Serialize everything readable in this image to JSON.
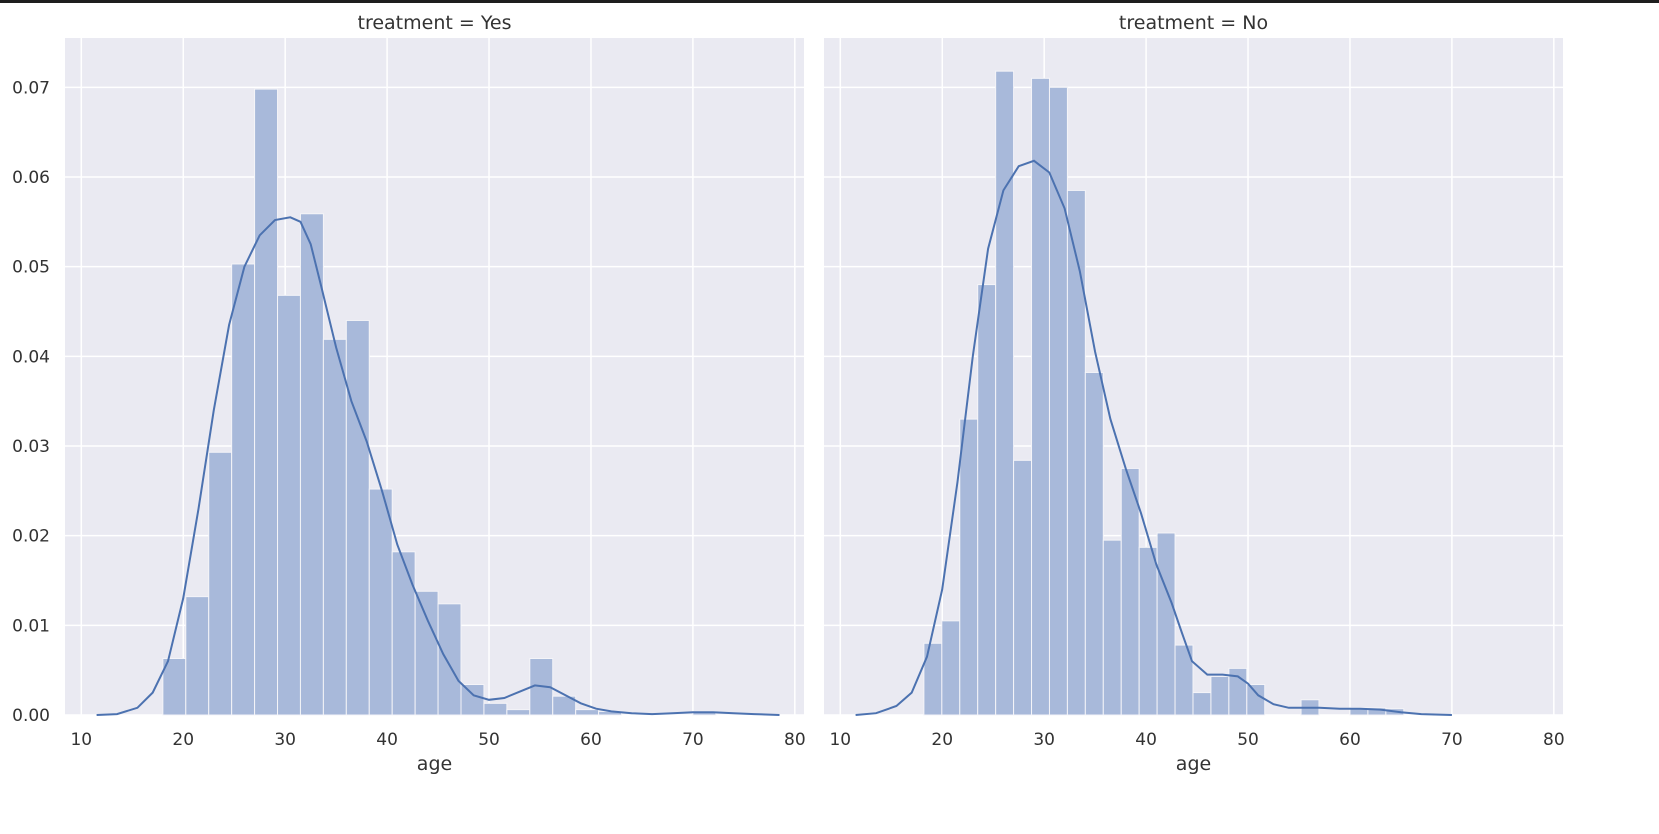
{
  "chart_data": [
    {
      "type": "bar",
      "title": "treatment = Yes",
      "xlabel": "age",
      "ylabel": "",
      "xlim": [
        8.4,
        80.9
      ],
      "ylim": [
        0,
        0.0755
      ],
      "xticks": [
        "10",
        "20",
        "30",
        "40",
        "50",
        "60",
        "70",
        "80"
      ],
      "yticks": [
        "0.00",
        "0.01",
        "0.02",
        "0.03",
        "0.04",
        "0.05",
        "0.06",
        "0.07"
      ],
      "bins": [
        {
          "x0": 18.0,
          "x1": 20.25,
          "y": 0.0063
        },
        {
          "x0": 20.25,
          "x1": 22.5,
          "y": 0.0132
        },
        {
          "x0": 22.5,
          "x1": 24.75,
          "y": 0.0293
        },
        {
          "x0": 24.75,
          "x1": 27.0,
          "y": 0.0503
        },
        {
          "x0": 27.0,
          "x1": 29.25,
          "y": 0.0698
        },
        {
          "x0": 29.25,
          "x1": 31.5,
          "y": 0.0468
        },
        {
          "x0": 31.5,
          "x1": 33.75,
          "y": 0.0559
        },
        {
          "x0": 33.75,
          "x1": 36.0,
          "y": 0.0419
        },
        {
          "x0": 36.0,
          "x1": 38.25,
          "y": 0.044
        },
        {
          "x0": 38.25,
          "x1": 40.5,
          "y": 0.0252
        },
        {
          "x0": 40.5,
          "x1": 42.75,
          "y": 0.0182
        },
        {
          "x0": 42.75,
          "x1": 45.0,
          "y": 0.0138
        },
        {
          "x0": 45.0,
          "x1": 47.25,
          "y": 0.0124
        },
        {
          "x0": 47.25,
          "x1": 49.5,
          "y": 0.0034
        },
        {
          "x0": 49.5,
          "x1": 51.75,
          "y": 0.0013
        },
        {
          "x0": 51.75,
          "x1": 54.0,
          "y": 0.0006
        },
        {
          "x0": 54.0,
          "x1": 56.25,
          "y": 0.0063
        },
        {
          "x0": 56.25,
          "x1": 58.5,
          "y": 0.0021
        },
        {
          "x0": 58.5,
          "x1": 60.75,
          "y": 0.0006
        },
        {
          "x0": 60.75,
          "x1": 63.0,
          "y": 0.0004
        },
        {
          "x0": 70.0,
          "x1": 72.25,
          "y": 0.0004
        }
      ],
      "kde": [
        [
          11.5,
          0.0
        ],
        [
          13.5,
          0.0001
        ],
        [
          15.5,
          0.0008
        ],
        [
          17,
          0.0025
        ],
        [
          18.5,
          0.006
        ],
        [
          20,
          0.013
        ],
        [
          21.5,
          0.023
        ],
        [
          23,
          0.034
        ],
        [
          24.5,
          0.0435
        ],
        [
          26,
          0.05
        ],
        [
          27.5,
          0.0535
        ],
        [
          29,
          0.0552
        ],
        [
          30.5,
          0.0555
        ],
        [
          31.5,
          0.055
        ],
        [
          32.5,
          0.0525
        ],
        [
          33.5,
          0.048
        ],
        [
          35,
          0.041
        ],
        [
          36.5,
          0.035
        ],
        [
          38,
          0.0305
        ],
        [
          39.5,
          0.025
        ],
        [
          41,
          0.019
        ],
        [
          42.5,
          0.0145
        ],
        [
          44,
          0.0105
        ],
        [
          45.5,
          0.0068
        ],
        [
          47,
          0.0038
        ],
        [
          48.5,
          0.0022
        ],
        [
          50,
          0.0017
        ],
        [
          51.5,
          0.0019
        ],
        [
          53,
          0.0026
        ],
        [
          54.5,
          0.0033
        ],
        [
          56,
          0.0031
        ],
        [
          57.5,
          0.0022
        ],
        [
          59,
          0.0013
        ],
        [
          60.5,
          0.0007
        ],
        [
          62,
          0.0004
        ],
        [
          64,
          0.0002
        ],
        [
          66,
          0.0001
        ],
        [
          68,
          0.0002
        ],
        [
          70,
          0.0003
        ],
        [
          72,
          0.0003
        ],
        [
          74,
          0.0002
        ],
        [
          76,
          0.0001
        ],
        [
          78.5,
          0.0
        ]
      ]
    },
    {
      "type": "bar",
      "title": "treatment = No",
      "xlabel": "age",
      "ylabel": "",
      "xlim": [
        8.4,
        80.9
      ],
      "ylim": [
        0,
        0.0755
      ],
      "xticks": [
        "10",
        "20",
        "30",
        "40",
        "50",
        "60",
        "70",
        "80"
      ],
      "yticks": [],
      "bins": [
        {
          "x0": 18.2,
          "x1": 19.96,
          "y": 0.008
        },
        {
          "x0": 19.96,
          "x1": 21.72,
          "y": 0.0105
        },
        {
          "x0": 21.72,
          "x1": 23.48,
          "y": 0.033
        },
        {
          "x0": 23.48,
          "x1": 25.24,
          "y": 0.048
        },
        {
          "x0": 25.24,
          "x1": 27.0,
          "y": 0.0718
        },
        {
          "x0": 27.0,
          "x1": 28.76,
          "y": 0.0284
        },
        {
          "x0": 28.76,
          "x1": 30.52,
          "y": 0.071
        },
        {
          "x0": 30.52,
          "x1": 32.28,
          "y": 0.07
        },
        {
          "x0": 32.28,
          "x1": 34.04,
          "y": 0.0585
        },
        {
          "x0": 34.04,
          "x1": 35.8,
          "y": 0.0382
        },
        {
          "x0": 35.8,
          "x1": 37.56,
          "y": 0.0195
        },
        {
          "x0": 37.56,
          "x1": 39.32,
          "y": 0.0275
        },
        {
          "x0": 39.32,
          "x1": 41.08,
          "y": 0.0187
        },
        {
          "x0": 41.08,
          "x1": 42.84,
          "y": 0.0203
        },
        {
          "x0": 42.84,
          "x1": 44.6,
          "y": 0.0078
        },
        {
          "x0": 44.6,
          "x1": 46.36,
          "y": 0.0025
        },
        {
          "x0": 46.36,
          "x1": 48.12,
          "y": 0.0043
        },
        {
          "x0": 48.12,
          "x1": 49.88,
          "y": 0.0052
        },
        {
          "x0": 49.88,
          "x1": 51.64,
          "y": 0.0034
        },
        {
          "x0": 55.2,
          "x1": 56.96,
          "y": 0.0017
        },
        {
          "x0": 60.0,
          "x1": 61.76,
          "y": 0.0008
        },
        {
          "x0": 61.76,
          "x1": 63.52,
          "y": 0.0008
        },
        {
          "x0": 63.52,
          "x1": 65.28,
          "y": 0.0007
        }
      ],
      "kde": [
        [
          11.5,
          0.0
        ],
        [
          13.5,
          0.0002
        ],
        [
          15.5,
          0.001
        ],
        [
          17,
          0.0025
        ],
        [
          18.5,
          0.0065
        ],
        [
          20,
          0.014
        ],
        [
          21.5,
          0.026
        ],
        [
          23,
          0.04
        ],
        [
          24.5,
          0.052
        ],
        [
          26,
          0.0585
        ],
        [
          27.5,
          0.0612
        ],
        [
          29,
          0.0618
        ],
        [
          30.5,
          0.0605
        ],
        [
          32,
          0.0565
        ],
        [
          33.5,
          0.0495
        ],
        [
          35,
          0.0405
        ],
        [
          36.5,
          0.033
        ],
        [
          38,
          0.0275
        ],
        [
          39.5,
          0.0225
        ],
        [
          41,
          0.0168
        ],
        [
          42.5,
          0.0125
        ],
        [
          43.5,
          0.0092
        ],
        [
          44.5,
          0.006
        ],
        [
          46,
          0.0045
        ],
        [
          47.5,
          0.0045
        ],
        [
          49,
          0.0043
        ],
        [
          50,
          0.0035
        ],
        [
          51,
          0.0022
        ],
        [
          52.5,
          0.0012
        ],
        [
          54,
          0.0008
        ],
        [
          55.5,
          0.0008
        ],
        [
          57,
          0.0008
        ],
        [
          59,
          0.0007
        ],
        [
          61,
          0.0007
        ],
        [
          63,
          0.0006
        ],
        [
          65,
          0.0003
        ],
        [
          67,
          0.0001
        ],
        [
          70,
          0.0
        ]
      ]
    }
  ]
}
